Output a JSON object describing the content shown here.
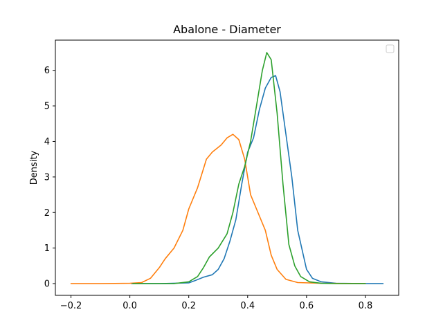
{
  "chart_data": {
    "type": "line",
    "title": "Abalone - Diameter",
    "xlabel": "",
    "ylabel": "Density",
    "xlim": [
      -0.253,
      0.913
    ],
    "ylim": [
      -0.33,
      6.85
    ],
    "xticks": [
      -0.2,
      0.0,
      0.2,
      0.4,
      0.6,
      0.8
    ],
    "yticks": [
      0,
      1,
      2,
      3,
      4,
      5,
      6
    ],
    "xtick_labels": [
      "−0.2",
      "0.0",
      "0.2",
      "0.4",
      "0.6",
      "0.8"
    ],
    "ytick_labels": [
      "0",
      "1",
      "2",
      "3",
      "4",
      "5",
      "6"
    ],
    "grid": false,
    "legend": {
      "placement": "top-right",
      "entries": []
    },
    "series": [
      {
        "color": "#1f77b4",
        "x": [
          0.005,
          0.1,
          0.2,
          0.22,
          0.25,
          0.28,
          0.3,
          0.32,
          0.34,
          0.36,
          0.38,
          0.4,
          0.42,
          0.44,
          0.46,
          0.48,
          0.495,
          0.51,
          0.53,
          0.55,
          0.57,
          0.6,
          0.62,
          0.65,
          0.7,
          0.8,
          0.86
        ],
        "y": [
          0,
          0,
          0.02,
          0.08,
          0.18,
          0.25,
          0.4,
          0.7,
          1.2,
          1.8,
          2.8,
          3.7,
          4.1,
          4.9,
          5.5,
          5.8,
          5.85,
          5.4,
          4.2,
          3.0,
          1.5,
          0.4,
          0.15,
          0.05,
          0.01,
          0,
          0
        ]
      },
      {
        "color": "#ff7f0e",
        "x": [
          -0.2,
          -0.1,
          0.0,
          0.04,
          0.07,
          0.1,
          0.12,
          0.15,
          0.18,
          0.2,
          0.23,
          0.26,
          0.28,
          0.31,
          0.33,
          0.35,
          0.37,
          0.39,
          0.41,
          0.43,
          0.46,
          0.48,
          0.5,
          0.53,
          0.57,
          0.65,
          0.8
        ],
        "y": [
          0,
          0,
          0.01,
          0.03,
          0.15,
          0.45,
          0.7,
          1.0,
          1.5,
          2.1,
          2.7,
          3.5,
          3.7,
          3.9,
          4.1,
          4.2,
          4.05,
          3.5,
          2.5,
          2.1,
          1.5,
          0.8,
          0.4,
          0.12,
          0.03,
          0.01,
          0
        ]
      },
      {
        "color": "#2ca02c",
        "x": [
          0.01,
          0.15,
          0.2,
          0.23,
          0.25,
          0.27,
          0.3,
          0.33,
          0.35,
          0.37,
          0.39,
          0.41,
          0.43,
          0.45,
          0.465,
          0.48,
          0.5,
          0.52,
          0.54,
          0.56,
          0.58,
          0.61,
          0.65,
          0.7,
          0.8
        ],
        "y": [
          0,
          0,
          0.05,
          0.2,
          0.45,
          0.75,
          1.0,
          1.4,
          2.0,
          2.8,
          3.3,
          4.0,
          5.0,
          6.0,
          6.5,
          6.3,
          4.8,
          2.8,
          1.1,
          0.5,
          0.2,
          0.05,
          0.01,
          0,
          0
        ]
      }
    ]
  }
}
